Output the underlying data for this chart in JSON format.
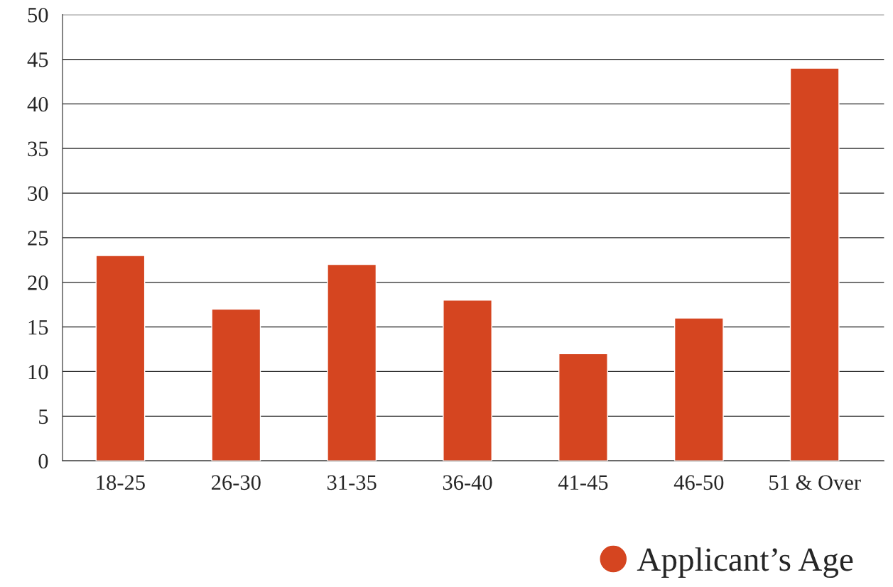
{
  "chart_data": {
    "type": "bar",
    "categories": [
      "18-25",
      "26-30",
      "31-35",
      "36-40",
      "41-45",
      "46-50",
      "51 & Over"
    ],
    "series": [
      {
        "name": "Applicant’s Age",
        "color": "#d54520",
        "values": [
          23,
          17,
          22,
          18,
          12,
          16,
          44
        ]
      }
    ],
    "ylim": [
      0,
      50
    ],
    "yticks": [
      0,
      5,
      10,
      15,
      20,
      25,
      30,
      35,
      40,
      45,
      50
    ],
    "grid": "y",
    "legend": "bottom right"
  }
}
